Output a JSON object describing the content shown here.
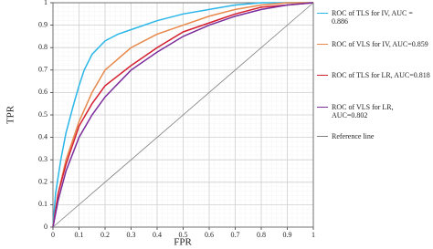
{
  "chart_data": {
    "type": "line",
    "xlabel": "FPR",
    "ylabel": "TPR",
    "xlim": [
      0,
      1
    ],
    "ylim": [
      0,
      1
    ],
    "xticks": [
      0,
      0.1,
      0.2,
      0.3,
      0.4,
      0.5,
      0.6,
      0.7,
      0.8,
      0.9,
      1
    ],
    "yticks": [
      0,
      0.1,
      0.2,
      0.3,
      0.4,
      0.5,
      0.6,
      0.7,
      0.8,
      0.9,
      1
    ],
    "grid": true,
    "legend": "right",
    "series": [
      {
        "name": "ROC of TLS for IV, AUC = 0.886",
        "color": "#29b6e8",
        "x": [
          0,
          0.01,
          0.03,
          0.05,
          0.08,
          0.1,
          0.12,
          0.15,
          0.2,
          0.25,
          0.3,
          0.4,
          0.5,
          0.6,
          0.7,
          0.8,
          1
        ],
        "values": [
          0,
          0.15,
          0.3,
          0.42,
          0.55,
          0.63,
          0.7,
          0.77,
          0.83,
          0.86,
          0.88,
          0.92,
          0.95,
          0.97,
          0.99,
          1,
          1
        ]
      },
      {
        "name": "ROC of VLS for IV, AUC=0.859",
        "color": "#e8884a",
        "x": [
          0,
          0.02,
          0.05,
          0.1,
          0.15,
          0.2,
          0.25,
          0.3,
          0.4,
          0.5,
          0.6,
          0.7,
          0.8,
          0.9,
          1
        ],
        "values": [
          0,
          0.15,
          0.3,
          0.47,
          0.6,
          0.7,
          0.75,
          0.8,
          0.86,
          0.9,
          0.94,
          0.97,
          0.99,
          1,
          1
        ]
      },
      {
        "name": "ROC of TLS for LR, AUC=0.818",
        "color": "#d42030",
        "x": [
          0,
          0.02,
          0.05,
          0.1,
          0.15,
          0.2,
          0.3,
          0.4,
          0.5,
          0.6,
          0.7,
          0.8,
          0.9,
          1
        ],
        "values": [
          0,
          0.15,
          0.28,
          0.45,
          0.55,
          0.63,
          0.72,
          0.8,
          0.87,
          0.91,
          0.95,
          0.98,
          0.99,
          1
        ]
      },
      {
        "name": "ROC of VLS for LR, AUC=0.802",
        "color": "#7b2d9c",
        "x": [
          0,
          0.02,
          0.05,
          0.1,
          0.15,
          0.2,
          0.3,
          0.4,
          0.5,
          0.6,
          0.7,
          0.8,
          0.9,
          1
        ],
        "values": [
          0,
          0.12,
          0.25,
          0.4,
          0.5,
          0.58,
          0.7,
          0.78,
          0.85,
          0.9,
          0.94,
          0.97,
          0.99,
          1
        ]
      },
      {
        "name": "Reference line",
        "color": "#808080",
        "x": [
          0,
          1
        ],
        "values": [
          0,
          1
        ]
      }
    ]
  }
}
